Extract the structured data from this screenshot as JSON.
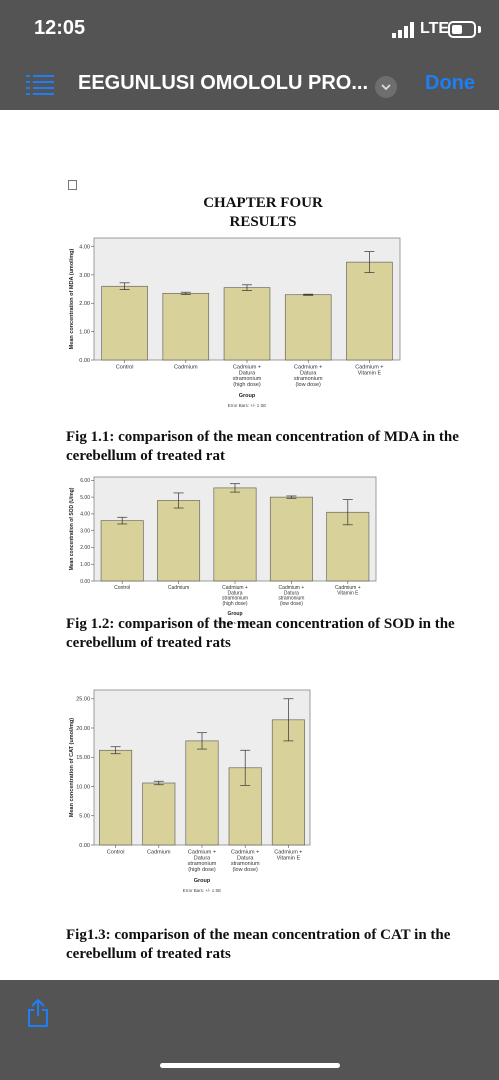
{
  "status": {
    "time": "12:05",
    "network": "LTE"
  },
  "nav": {
    "title": "EEGUNLUSI OMOLOLU PRO...",
    "done_label": "Done"
  },
  "document": {
    "chapter_line1": "CHAPTER FOUR",
    "chapter_line2": "RESULTS",
    "fig1_caption": "Fig 1.1: comparison of the mean concentration of MDA in the cerebellum of treated rat",
    "fig2_caption": "Fig 1.2: comparison of the mean concentration of SOD in the cerebellum of treated rats",
    "fig3_caption": "Fig1.3: comparison of the mean concentration of CAT in the cerebellum of treated rats"
  },
  "chart_data": [
    {
      "type": "bar",
      "categories": [
        [
          "Control"
        ],
        [
          "Cadmium"
        ],
        [
          "Cadmium +",
          "Datura",
          "stramonium",
          "(high dose)"
        ],
        [
          "Cadmium +",
          "Datura",
          "stramonium",
          "(low dose)"
        ],
        [
          "Cadmium +",
          "Vitamin E"
        ]
      ],
      "values": [
        2.6,
        2.35,
        2.55,
        2.3,
        3.45
      ],
      "errors": [
        0.12,
        0.04,
        0.1,
        0.02,
        0.37
      ],
      "yticks": [
        "0.00",
        "1.00",
        "2.00",
        "3.00",
        "4.00"
      ],
      "ylim": [
        0,
        4.3
      ],
      "xlabel": "Group",
      "ylabel": "Mean concentration of MDA (umol/mg)",
      "footnote": "Error Bars: +/- 1 SE",
      "bar_color": "#d8d29a",
      "plot_bg": "#ededed",
      "grid": false
    },
    {
      "type": "bar",
      "categories": [
        [
          "Control"
        ],
        [
          "Cadmium"
        ],
        [
          "Cadmium +",
          "Datura",
          "stramonium",
          "(high dose)"
        ],
        [
          "Cadmium +",
          "Datura",
          "stramonium",
          "(low dose)"
        ],
        [
          "Cadmium +",
          "Vitamin E"
        ]
      ],
      "values": [
        3.6,
        4.8,
        5.55,
        5.0,
        4.1
      ],
      "errors": [
        0.2,
        0.45,
        0.25,
        0.07,
        0.75
      ],
      "yticks": [
        "0.00",
        "1.00",
        "2.00",
        "3.00",
        "4.00",
        "5.00",
        "6.00"
      ],
      "ylim": [
        0,
        6.2
      ],
      "xlabel": "Group",
      "ylabel": "Mean concentration of SOD (U/mg)",
      "footnote": "Error Bars: +/- 1 SE",
      "bar_color": "#d8d29a",
      "plot_bg": "#ededed",
      "grid": false
    },
    {
      "type": "bar",
      "categories": [
        [
          "Control"
        ],
        [
          "Cadmium"
        ],
        [
          "Cadmium +",
          "Datura",
          "stramonium",
          "(high dose)"
        ],
        [
          "Cadmium +",
          "Datura",
          "stramonium",
          "(low dose)"
        ],
        [
          "Cadmium +",
          "Vitamin E"
        ]
      ],
      "values": [
        16.2,
        10.6,
        17.8,
        13.2,
        21.4
      ],
      "errors": [
        0.6,
        0.3,
        1.4,
        3.0,
        3.6
      ],
      "yticks": [
        "0.00",
        "5.00",
        "10.00",
        "15.00",
        "20.00",
        "25.00"
      ],
      "ylim": [
        0,
        26.5
      ],
      "xlabel": "Group",
      "ylabel": "Mean concentration of CAT (umol/mg)",
      "footnote": "Error Bars: +/- 1 SE",
      "bar_color": "#d8d29a",
      "plot_bg": "#ededed",
      "grid": false
    }
  ]
}
